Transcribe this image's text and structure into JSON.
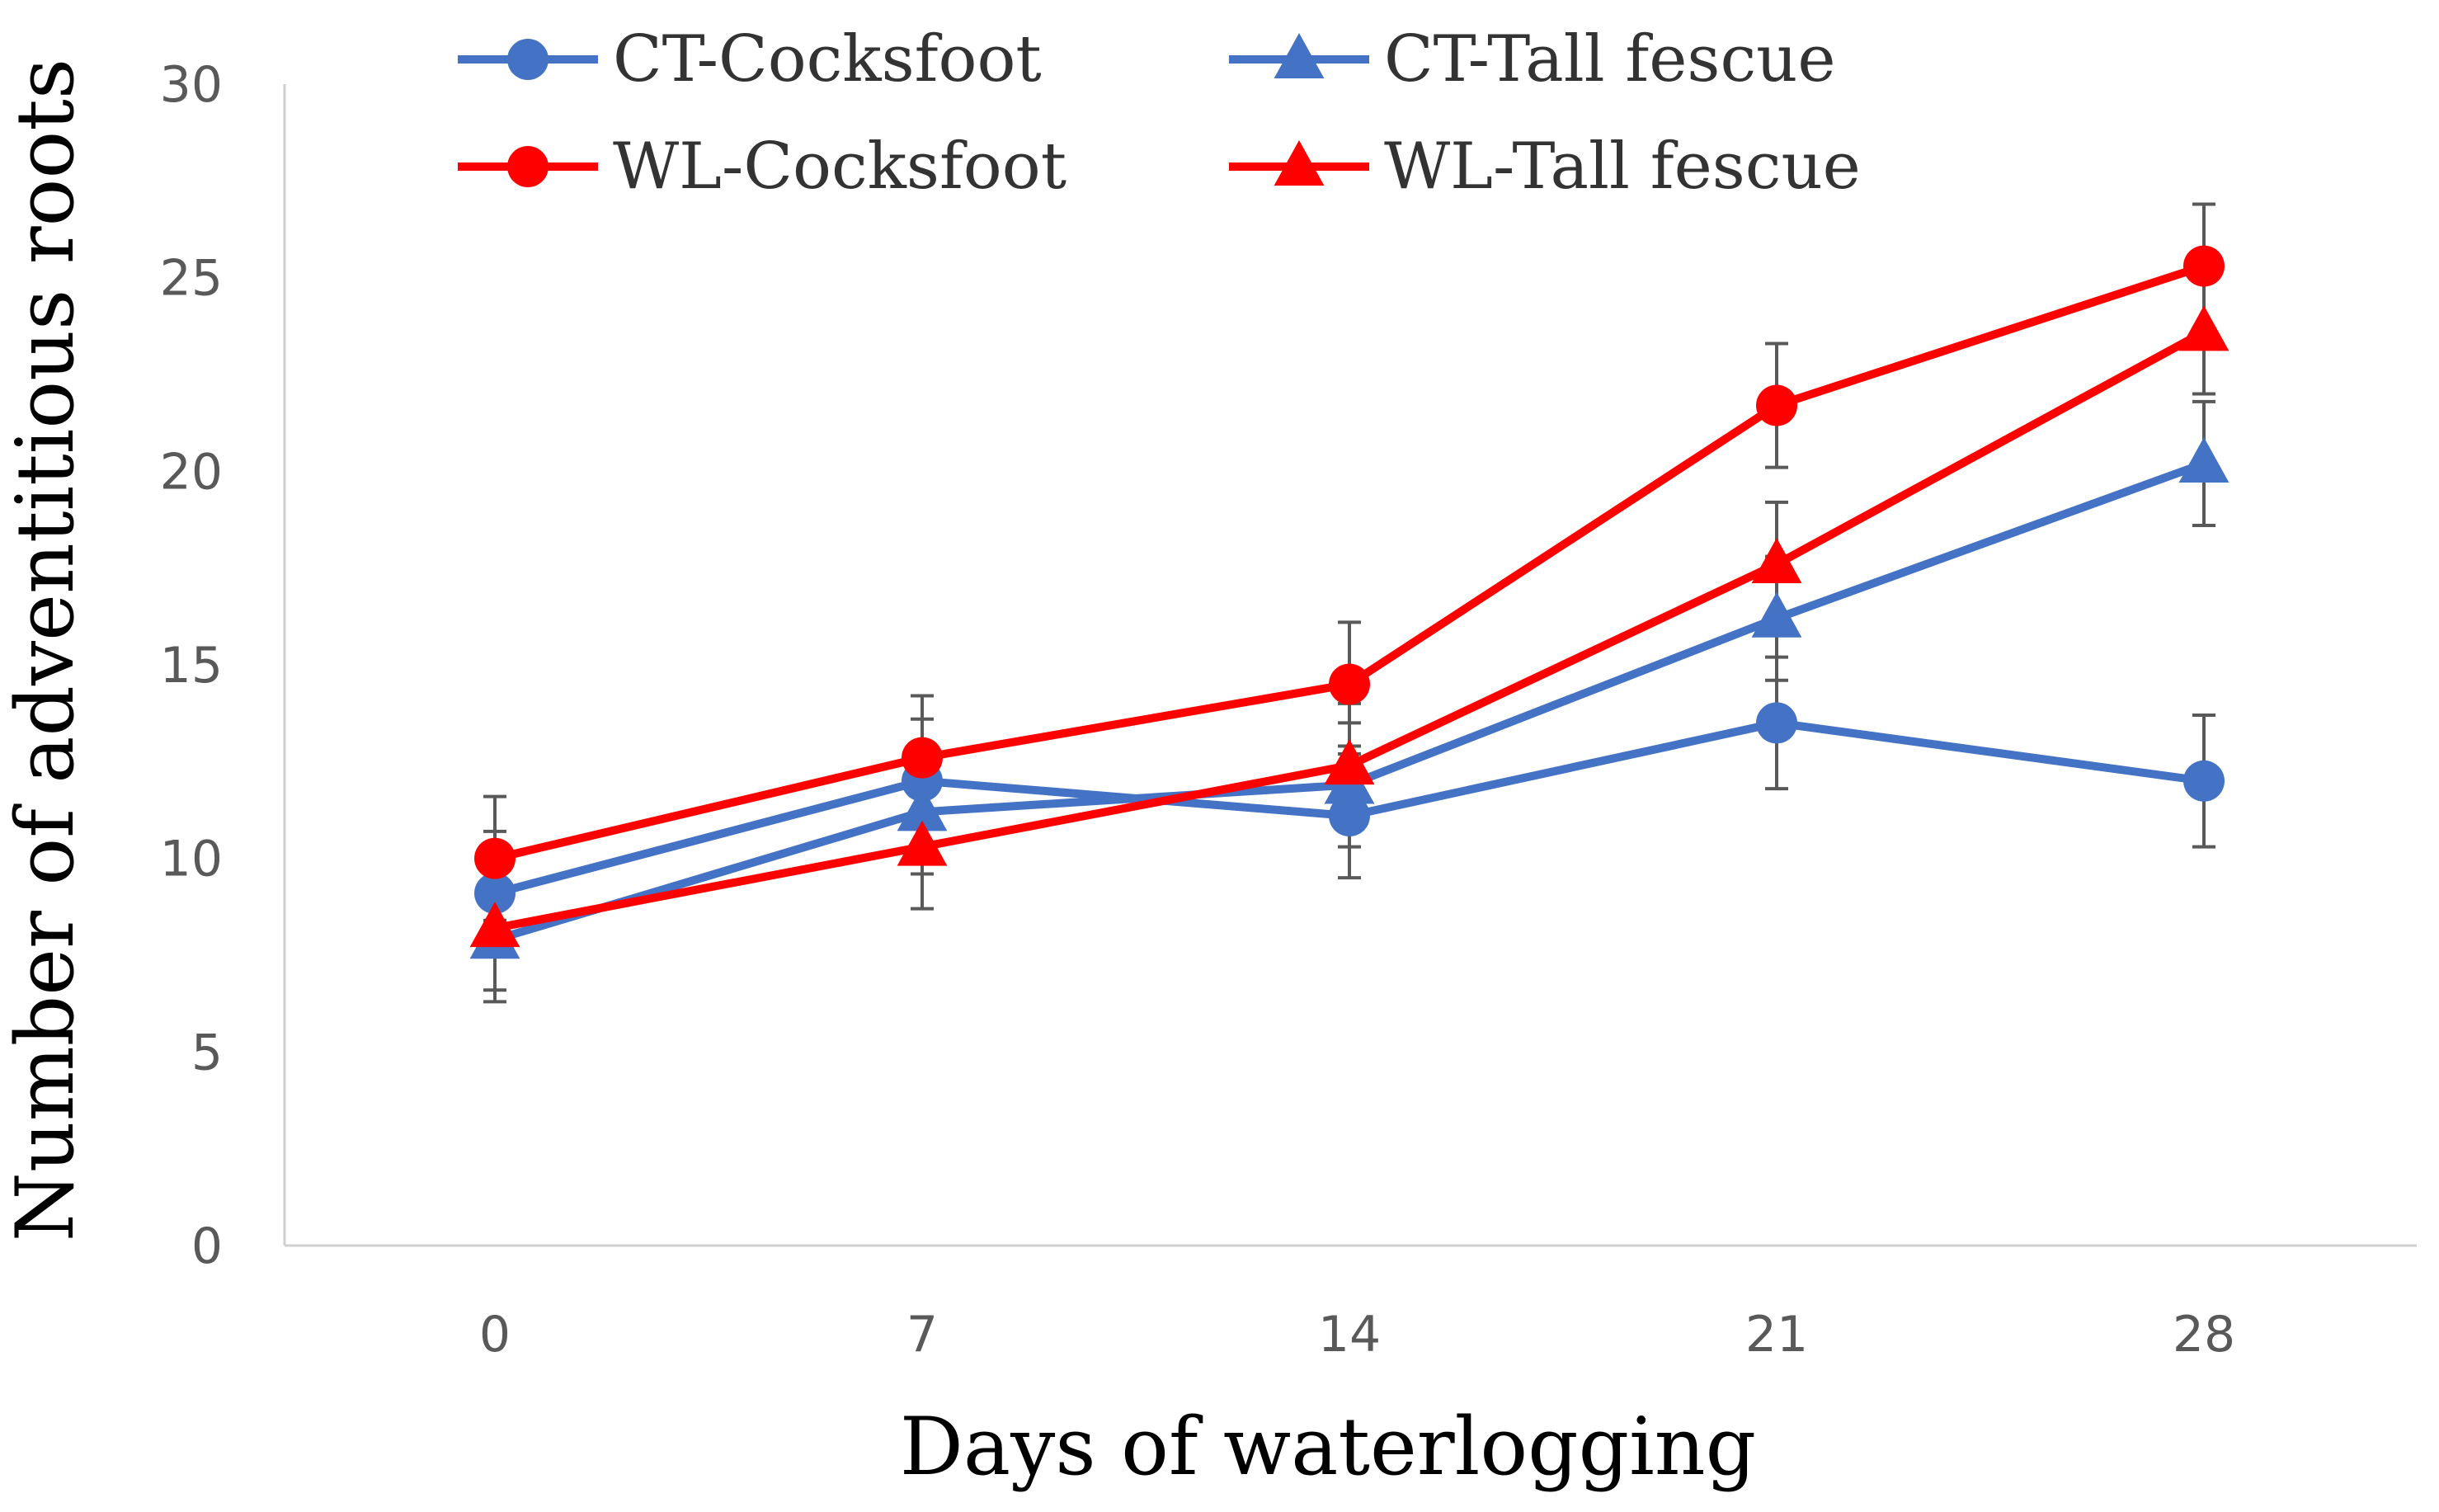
{
  "chart_data": {
    "type": "line",
    "title": "",
    "xlabel": "Days of waterlogging",
    "ylabel": "Number of adventitious roots",
    "categories": [
      "0",
      "7",
      "14",
      "21",
      "28"
    ],
    "ylim": [
      0,
      30
    ],
    "yticks": [
      0,
      5,
      10,
      15,
      20,
      25,
      30
    ],
    "yticklabels": [
      "0",
      "5",
      "10",
      "15",
      "20",
      "25",
      "30"
    ],
    "grid": false,
    "legend_position": "top",
    "series": [
      {
        "name": "CT-Cocksfoot",
        "color": "#4472C4",
        "marker": "circle",
        "values": [
          9.1,
          12.0,
          11.1,
          13.5,
          12.0
        ],
        "errors": [
          1.6,
          1.6,
          1.6,
          1.7,
          1.7
        ]
      },
      {
        "name": "CT-Tall fescue",
        "color": "#4472C4",
        "marker": "triangle",
        "values": [
          7.9,
          11.2,
          11.9,
          16.2,
          20.2
        ],
        "errors": [
          1.6,
          1.6,
          1.6,
          1.6,
          1.6
        ]
      },
      {
        "name": "WL-Cocksfoot",
        "color": "#FF0000",
        "marker": "circle",
        "values": [
          10.0,
          12.6,
          14.5,
          21.7,
          25.3
        ],
        "errors": [
          1.6,
          1.6,
          1.6,
          1.6,
          1.6
        ]
      },
      {
        "name": "WL-Tall fescue",
        "color": "#FF0000",
        "marker": "triangle",
        "values": [
          8.2,
          10.3,
          12.4,
          17.6,
          23.6
        ],
        "errors": [
          1.6,
          1.6,
          1.6,
          1.6,
          1.6
        ]
      }
    ]
  }
}
